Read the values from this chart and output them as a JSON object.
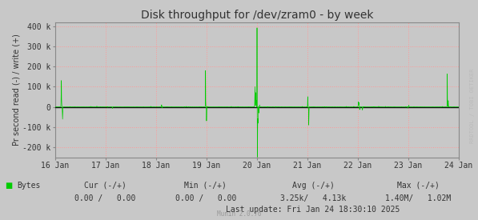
{
  "title": "Disk throughput for /dev/zram0 - by week",
  "ylabel": "Pr second read (-) / write (+)",
  "background_color": "#c8c8c8",
  "plot_bg_color": "#c8c8c8",
  "grid_color": "#ff9999",
  "line_color": "#00cc00",
  "zero_line_color": "#111111",
  "ylim": [
    -250000,
    420000
  ],
  "yticks": [
    -200000,
    -100000,
    0,
    100000,
    200000,
    300000,
    400000
  ],
  "ytick_labels": [
    "-200 k",
    "-100 k",
    "0",
    "100 k",
    "200 k",
    "300 k",
    "400 k"
  ],
  "xlabel_dates": [
    "16 Jan",
    "17 Jan",
    "18 Jan",
    "19 Jan",
    "20 Jan",
    "21 Jan",
    "22 Jan",
    "23 Jan",
    "24 Jan"
  ],
  "legend_label": "Bytes",
  "legend_color": "#00cc00",
  "last_update": "Last update: Fri Jan 24 18:30:10 2025",
  "munin_version": "Munin 2.0.76",
  "watermark": "RRDTOOL / TOBI OETIKER",
  "title_fontsize": 10,
  "axis_fontsize": 7,
  "tick_fontsize": 7,
  "footer_fontsize": 7
}
